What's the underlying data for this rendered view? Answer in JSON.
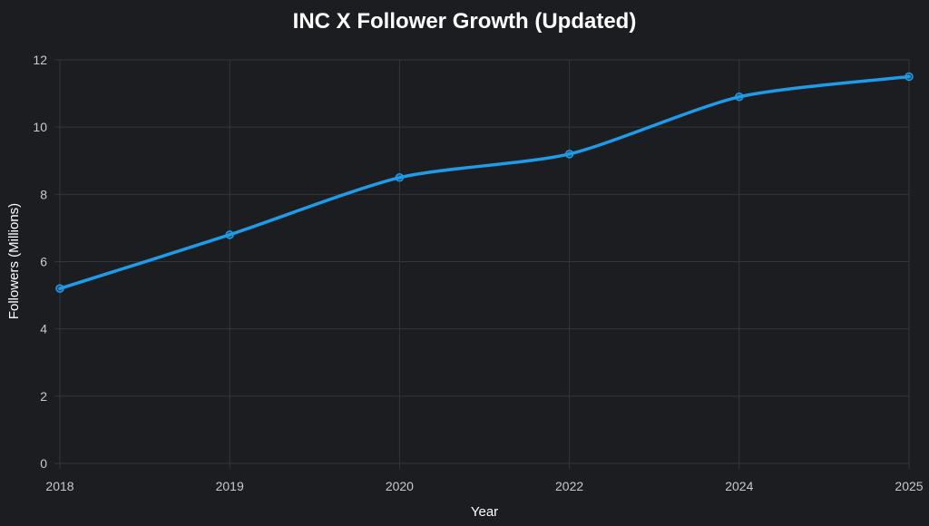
{
  "chart_data": {
    "type": "line",
    "title": "INC X Follower Growth (Updated)",
    "xlabel": "Year",
    "ylabel": "Followers (Millions)",
    "categories": [
      "2018",
      "2019",
      "2020",
      "2022",
      "2024",
      "2025"
    ],
    "series": [
      {
        "values": [
          5.2,
          6.8,
          8.5,
          9.2,
          10.9,
          11.5
        ],
        "color": "#1f9be8"
      }
    ],
    "ylim": [
      0,
      12
    ],
    "yticks": [
      "0",
      "2",
      "4",
      "6",
      "8",
      "10",
      "12"
    ],
    "grid": true,
    "legend": "none"
  }
}
